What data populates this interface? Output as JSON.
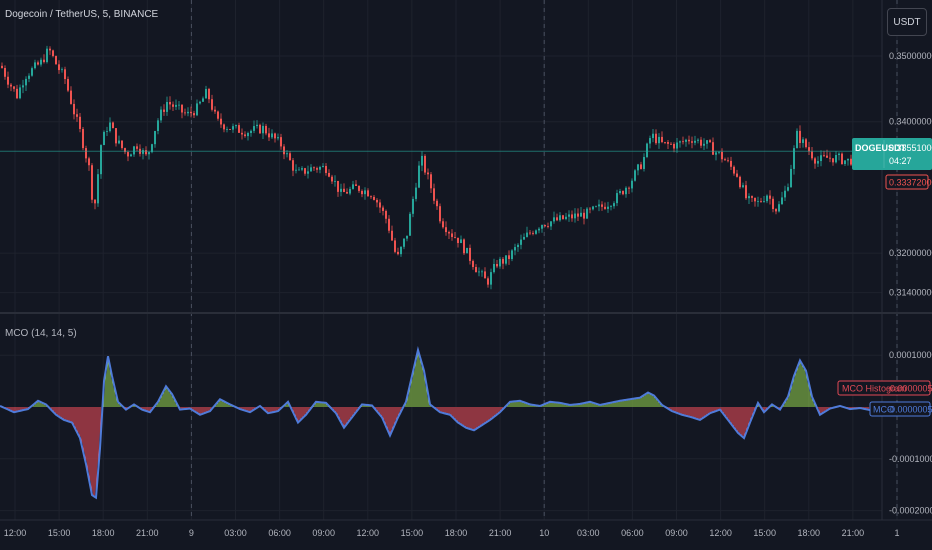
{
  "header": {
    "title": "Dogecoin / TetherUS, 5, BINANCE",
    "currency_button": "USDT"
  },
  "colors": {
    "background": "#131722",
    "grid": "#1e222d",
    "up": "#26a69a",
    "down": "#ef5350",
    "mco_line": "#4f7bd9",
    "hist_pos": "#8bc34a",
    "hist_neg": "#e04a56",
    "text": "#b2b5be"
  },
  "chart_data": [
    {
      "type": "candlestick",
      "title": "Dogecoin / TetherUS, 5, BINANCE",
      "symbol_label": "DOGEUSDT",
      "last_price": "0.33551000",
      "countdown": "04:27",
      "low_marker": "0.33372000",
      "y_ticks": [
        "0.35000000",
        "0.34000000",
        "0.32000000",
        "0.31400000"
      ],
      "x_ticks": [
        "12:00",
        "15:00",
        "18:00",
        "21:00",
        "9",
        "03:00",
        "06:00",
        "09:00",
        "12:00",
        "15:00",
        "18:00",
        "21:00",
        "10",
        "03:00",
        "06:00",
        "09:00",
        "12:00",
        "15:00",
        "18:00",
        "21:00",
        "1"
      ],
      "price_path": [
        [
          0,
          0.3485
        ],
        [
          8,
          0.346
        ],
        [
          16,
          0.344
        ],
        [
          24,
          0.347
        ],
        [
          32,
          0.348
        ],
        [
          40,
          0.349
        ],
        [
          48,
          0.351
        ],
        [
          56,
          0.3485
        ],
        [
          64,
          0.3465
        ],
        [
          72,
          0.342
        ],
        [
          80,
          0.338
        ],
        [
          88,
          0.333
        ],
        [
          93,
          0.3262
        ],
        [
          100,
          0.3365
        ],
        [
          108,
          0.34
        ],
        [
          116,
          0.337
        ],
        [
          126,
          0.335
        ],
        [
          136,
          0.3365
        ],
        [
          146,
          0.3345
        ],
        [
          156,
          0.34
        ],
        [
          166,
          0.343
        ],
        [
          176,
          0.342
        ],
        [
          186,
          0.341
        ],
        [
          196,
          0.342
        ],
        [
          206,
          0.3445
        ],
        [
          216,
          0.34
        ],
        [
          230,
          0.339
        ],
        [
          246,
          0.3385
        ],
        [
          262,
          0.339
        ],
        [
          280,
          0.3365
        ],
        [
          296,
          0.332
        ],
        [
          312,
          0.333
        ],
        [
          326,
          0.333
        ],
        [
          340,
          0.329
        ],
        [
          356,
          0.33
        ],
        [
          372,
          0.329
        ],
        [
          386,
          0.325
        ],
        [
          396,
          0.319
        ],
        [
          406,
          0.323
        ],
        [
          414,
          0.33
        ],
        [
          420,
          0.3345
        ],
        [
          430,
          0.33
        ],
        [
          440,
          0.325
        ],
        [
          450,
          0.323
        ],
        [
          458,
          0.322
        ],
        [
          466,
          0.32
        ],
        [
          476,
          0.3175
        ],
        [
          486,
          0.3155
        ],
        [
          496,
          0.3185
        ],
        [
          506,
          0.319
        ],
        [
          516,
          0.321
        ],
        [
          528,
          0.323
        ],
        [
          540,
          0.3245
        ],
        [
          556,
          0.325
        ],
        [
          570,
          0.3255
        ],
        [
          586,
          0.326
        ],
        [
          600,
          0.327
        ],
        [
          616,
          0.3285
        ],
        [
          630,
          0.331
        ],
        [
          642,
          0.334
        ],
        [
          650,
          0.338
        ],
        [
          662,
          0.3365
        ],
        [
          676,
          0.3365
        ],
        [
          690,
          0.3375
        ],
        [
          706,
          0.3365
        ],
        [
          722,
          0.3345
        ],
        [
          736,
          0.332
        ],
        [
          746,
          0.328
        ],
        [
          756,
          0.3275
        ],
        [
          766,
          0.329
        ],
        [
          776,
          0.3265
        ],
        [
          786,
          0.33
        ],
        [
          796,
          0.338
        ],
        [
          806,
          0.336
        ],
        [
          816,
          0.334
        ],
        [
          826,
          0.3345
        ],
        [
          836,
          0.3345
        ],
        [
          846,
          0.334
        ],
        [
          856,
          0.3345
        ],
        [
          866,
          0.334
        ],
        [
          876,
          0.3352
        ]
      ]
    },
    {
      "type": "area",
      "title": "MCO (14, 14, 5)",
      "y_ticks": [
        "0.00010000",
        "-0.00010000",
        "-0.00020000"
      ],
      "series": [
        {
          "name": "MCO Histogram",
          "last": "-0.00000058"
        },
        {
          "name": "MCO",
          "last": "-0.00000058"
        }
      ],
      "points": [
        [
          0,
          2e-06
        ],
        [
          14,
          -1e-05
        ],
        [
          28,
          -4e-06
        ],
        [
          38,
          1.2e-05
        ],
        [
          46,
          5e-06
        ],
        [
          56,
          -1.5e-05
        ],
        [
          64,
          -2.5e-05
        ],
        [
          72,
          -3e-05
        ],
        [
          80,
          -6e-05
        ],
        [
          86,
          -0.00011
        ],
        [
          92,
          -0.00017
        ],
        [
          96,
          -0.000175
        ],
        [
          100,
          -8e-05
        ],
        [
          104,
          5e-05
        ],
        [
          108,
          9.8e-05
        ],
        [
          112,
          6e-05
        ],
        [
          118,
          1e-05
        ],
        [
          126,
          -5e-06
        ],
        [
          134,
          5e-06
        ],
        [
          142,
          -5e-06
        ],
        [
          150,
          -1e-05
        ],
        [
          158,
          1e-05
        ],
        [
          166,
          4e-05
        ],
        [
          172,
          2.5e-05
        ],
        [
          180,
          -5e-06
        ],
        [
          190,
          -3e-06
        ],
        [
          200,
          -1.5e-05
        ],
        [
          210,
          -8e-06
        ],
        [
          220,
          1.5e-05
        ],
        [
          230,
          5e-06
        ],
        [
          240,
          -4e-06
        ],
        [
          250,
          -1e-05
        ],
        [
          260,
          2e-06
        ],
        [
          268,
          -1.2e-05
        ],
        [
          278,
          -8e-06
        ],
        [
          288,
          1e-05
        ],
        [
          298,
          -3e-05
        ],
        [
          306,
          -1.5e-05
        ],
        [
          316,
          1e-05
        ],
        [
          326,
          8e-06
        ],
        [
          336,
          -1.2e-05
        ],
        [
          344,
          -4e-05
        ],
        [
          352,
          -2e-05
        ],
        [
          362,
          5e-06
        ],
        [
          372,
          3e-06
        ],
        [
          382,
          -2e-05
        ],
        [
          390,
          -5.5e-05
        ],
        [
          398,
          -2e-05
        ],
        [
          406,
          1e-05
        ],
        [
          412,
          6e-05
        ],
        [
          418,
          0.00011
        ],
        [
          424,
          7e-05
        ],
        [
          430,
          5e-06
        ],
        [
          440,
          -1e-05
        ],
        [
          450,
          -1.5e-05
        ],
        [
          458,
          -3e-05
        ],
        [
          466,
          -4e-05
        ],
        [
          474,
          -4.5e-05
        ],
        [
          482,
          -3.5e-05
        ],
        [
          490,
          -2.5e-05
        ],
        [
          500,
          -1e-05
        ],
        [
          510,
          1e-05
        ],
        [
          520,
          1.2e-05
        ],
        [
          530,
          5e-06
        ],
        [
          540,
          2e-06
        ],
        [
          550,
          1e-05
        ],
        [
          560,
          8e-06
        ],
        [
          570,
          4e-06
        ],
        [
          580,
          6e-06
        ],
        [
          590,
          1e-05
        ],
        [
          600,
          4e-06
        ],
        [
          610,
          8e-06
        ],
        [
          620,
          1.2e-05
        ],
        [
          630,
          1.5e-05
        ],
        [
          640,
          1.8e-05
        ],
        [
          648,
          2.8e-05
        ],
        [
          654,
          2.2e-05
        ],
        [
          662,
          4e-06
        ],
        [
          672,
          -8e-06
        ],
        [
          682,
          -1.5e-05
        ],
        [
          692,
          -2e-05
        ],
        [
          700,
          -2.5e-05
        ],
        [
          710,
          -1.2e-05
        ],
        [
          720,
          -5e-06
        ],
        [
          730,
          -3e-05
        ],
        [
          738,
          -5e-05
        ],
        [
          744,
          -6e-05
        ],
        [
          750,
          -3e-05
        ],
        [
          758,
          8e-06
        ],
        [
          764,
          -1e-05
        ],
        [
          772,
          5e-06
        ],
        [
          780,
          -5e-06
        ],
        [
          788,
          2e-05
        ],
        [
          794,
          6e-05
        ],
        [
          800,
          9e-05
        ],
        [
          806,
          7e-05
        ],
        [
          812,
          2e-05
        ],
        [
          820,
          -1.5e-05
        ],
        [
          830,
          -3e-06
        ],
        [
          840,
          2e-06
        ],
        [
          850,
          -4e-06
        ],
        [
          860,
          -2e-06
        ],
        [
          870,
          -6e-06
        ],
        [
          876,
          -6e-07
        ]
      ]
    }
  ]
}
